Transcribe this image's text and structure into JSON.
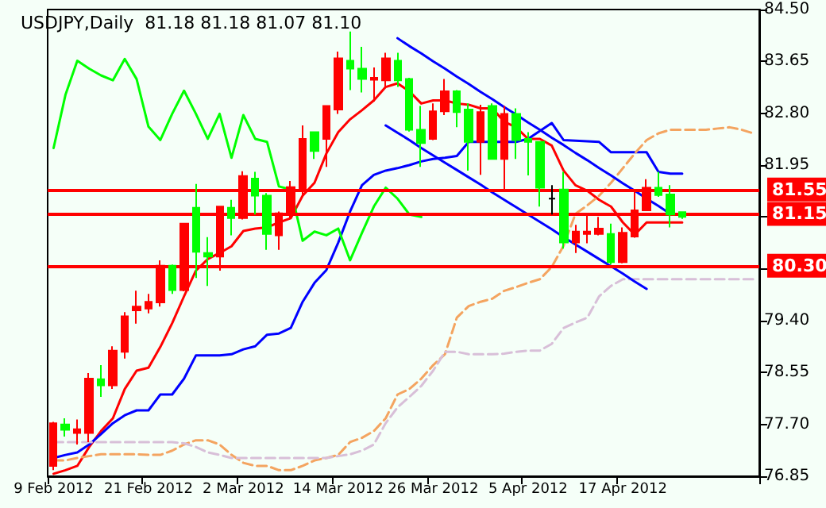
{
  "chart_data": {
    "type": "candlestick",
    "title": "USDJPY,Daily  81.18 81.18 81.07 81.10",
    "categories": [
      "9 Feb 2012",
      null,
      null,
      null,
      null,
      null,
      null,
      null,
      "21 Feb 2012",
      null,
      null,
      null,
      null,
      null,
      null,
      null,
      "2 Mar 2012",
      null,
      null,
      null,
      null,
      null,
      null,
      null,
      "14 Mar 2012",
      null,
      null,
      null,
      null,
      null,
      null,
      null,
      "26 Mar 2012",
      null,
      null,
      null,
      null,
      null,
      null,
      null,
      "5 Apr 2012",
      null,
      null,
      null,
      null,
      null,
      null,
      null,
      "17 Apr 2012",
      null,
      null,
      null,
      null,
      null,
      null,
      null,
      null,
      null,
      null,
      null
    ],
    "ylim": [
      76.85,
      84.5
    ],
    "yticks": [
      {
        "value": 76.85,
        "label": "76.85"
      },
      {
        "value": 77.7,
        "label": "77.70"
      },
      {
        "value": 78.55,
        "label": "78.55"
      },
      {
        "value": 79.4,
        "label": "79.40"
      },
      {
        "value": 80.25,
        "label": null
      },
      {
        "value": 81.1,
        "label": null
      },
      {
        "value": 81.95,
        "label": "81.95"
      },
      {
        "value": 82.8,
        "label": "82.80"
      },
      {
        "value": 83.65,
        "label": "83.65"
      },
      {
        "value": 84.5,
        "label": "84.50"
      }
    ],
    "grid": false,
    "marker": "none",
    "ref_lines": [
      {
        "axis": "y",
        "value": 81.55,
        "label": "81.55",
        "color": "#ff0000"
      },
      {
        "axis": "y",
        "value": 81.15,
        "label": "81.15",
        "color": "#ff0000"
      },
      {
        "axis": "y",
        "value": 80.3,
        "label": "80.30",
        "color": "#ff0000"
      }
    ],
    "series": [
      {
        "type": "candlestick",
        "ohlc": [
          [
            77.02,
            77.74,
            76.95,
            77.72
          ],
          [
            77.7,
            77.8,
            77.5,
            77.61
          ],
          [
            77.56,
            77.78,
            77.37,
            77.62
          ],
          [
            77.56,
            78.54,
            77.41,
            78.45
          ],
          [
            78.44,
            78.67,
            78.15,
            78.34
          ],
          [
            78.34,
            78.98,
            78.28,
            78.91
          ],
          [
            78.89,
            79.54,
            78.78,
            79.47
          ],
          [
            79.57,
            79.89,
            79.35,
            79.63
          ],
          [
            79.6,
            79.84,
            79.52,
            79.71
          ],
          [
            79.7,
            80.39,
            79.63,
            80.3
          ],
          [
            80.3,
            80.32,
            79.84,
            79.9
          ],
          [
            79.9,
            80.99,
            79.88,
            80.99
          ],
          [
            81.25,
            81.64,
            80.1,
            80.53
          ],
          [
            80.51,
            80.77,
            79.97,
            80.45
          ],
          [
            80.45,
            81.27,
            80.22,
            81.27
          ],
          [
            81.25,
            81.38,
            80.8,
            81.08
          ],
          [
            81.08,
            81.85,
            81.06,
            81.77
          ],
          [
            81.73,
            81.84,
            81.14,
            81.45
          ],
          [
            81.45,
            81.49,
            80.56,
            80.82
          ],
          [
            80.8,
            81.19,
            80.56,
            81.16
          ],
          [
            81.16,
            81.69,
            81.08,
            81.59
          ],
          [
            81.55,
            82.6,
            81.46,
            82.38
          ],
          [
            82.49,
            82.49,
            82.05,
            82.18
          ],
          [
            82.38,
            82.92,
            81.92,
            82.92
          ],
          [
            82.86,
            83.81,
            82.79,
            83.7
          ],
          [
            83.66,
            84.14,
            83.18,
            83.53
          ],
          [
            83.53,
            83.89,
            83.14,
            83.36
          ],
          [
            83.35,
            83.55,
            82.99,
            83.38
          ],
          [
            83.34,
            83.79,
            83.23,
            83.7
          ],
          [
            83.66,
            83.79,
            83.23,
            83.34
          ],
          [
            83.36,
            83.38,
            82.5,
            82.53
          ],
          [
            82.53,
            82.92,
            81.92,
            82.31
          ],
          [
            82.38,
            82.96,
            82.36,
            82.83
          ],
          [
            82.83,
            83.36,
            82.77,
            83.16
          ],
          [
            83.16,
            83.18,
            82.57,
            82.82
          ],
          [
            82.86,
            82.96,
            81.86,
            82.33
          ],
          [
            82.33,
            82.94,
            81.79,
            82.82
          ],
          [
            82.92,
            82.96,
            82.05,
            82.05
          ],
          [
            82.05,
            82.92,
            81.55,
            82.79
          ],
          [
            82.79,
            82.88,
            82.05,
            82.36
          ],
          [
            82.38,
            82.49,
            81.78,
            82.33
          ],
          [
            82.33,
            82.33,
            81.27,
            81.58
          ],
          [
            81.4,
            81.62,
            81.14,
            81.4
          ],
          [
            81.55,
            81.84,
            80.58,
            80.68
          ],
          [
            80.68,
            80.97,
            80.51,
            80.86
          ],
          [
            80.82,
            81.14,
            80.67,
            80.86
          ],
          [
            80.82,
            81.1,
            80.8,
            80.91
          ],
          [
            80.82,
            80.99,
            80.32,
            80.36
          ],
          [
            80.36,
            80.93,
            80.34,
            80.84
          ],
          [
            80.78,
            81.55,
            80.76,
            81.21
          ],
          [
            81.21,
            81.72,
            81.2,
            81.58
          ],
          [
            81.58,
            81.84,
            81.43,
            81.46
          ],
          [
            81.47,
            81.62,
            80.93,
            81.14
          ],
          [
            81.18,
            81.18,
            81.07,
            81.1
          ],
          null,
          null,
          null,
          null,
          null,
          null
        ],
        "colors": [
          "#ff0000",
          "#00ff00",
          "#ff0000",
          "#ff0000",
          "#00ff00",
          "#ff0000",
          "#ff0000",
          "#ff0000",
          "#ff0000",
          "#ff0000",
          "#00ff00",
          "#ff0000",
          "#00ff00",
          "#00ff00",
          "#ff0000",
          "#00ff00",
          "#ff0000",
          "#00ff00",
          "#00ff00",
          "#ff0000",
          "#ff0000",
          "#ff0000",
          "#00ff00",
          "#ff0000",
          "#ff0000",
          "#00ff00",
          "#00ff00",
          "#ff0000",
          "#ff0000",
          "#00ff00",
          "#00ff00",
          "#00ff00",
          "#ff0000",
          "#ff0000",
          "#00ff00",
          "#00ff00",
          "#ff0000",
          "#00ff00",
          "#ff0000",
          "#00ff00",
          "#00ff00",
          "#00ff00",
          "#000000",
          "#00ff00",
          "#ff0000",
          "#ff0000",
          "#ff0000",
          "#00ff00",
          "#ff0000",
          "#ff0000",
          "#ff0000",
          "#00ff00",
          "#00ff00",
          "#00ff00",
          null,
          null,
          null,
          null,
          null,
          null
        ]
      },
      {
        "type": "line",
        "color": "#ff0000",
        "line_style": "solid",
        "values": [
          76.89,
          76.95,
          77.02,
          77.33,
          77.59,
          77.8,
          78.28,
          78.58,
          78.63,
          78.97,
          79.36,
          79.8,
          80.22,
          80.41,
          80.51,
          80.62,
          80.87,
          80.91,
          80.93,
          81.01,
          81.08,
          81.45,
          81.66,
          82.14,
          82.49,
          82.7,
          82.85,
          83.01,
          83.23,
          83.29,
          83.16,
          82.96,
          83.01,
          83.01,
          82.96,
          82.94,
          82.88,
          82.88,
          82.66,
          82.57,
          82.38,
          82.38,
          82.27,
          81.86,
          81.62,
          81.53,
          81.38,
          81.27,
          81.01,
          80.81,
          81.01,
          81.01,
          81.01,
          81.01,
          null,
          null,
          null,
          null,
          null,
          null
        ]
      },
      {
        "type": "line",
        "color": "#0000ff",
        "line_style": "solid",
        "values": [
          77.15,
          77.2,
          77.24,
          77.37,
          77.54,
          77.72,
          77.85,
          77.93,
          77.93,
          78.19,
          78.19,
          78.45,
          78.83,
          78.83,
          78.83,
          78.85,
          78.93,
          78.98,
          79.17,
          79.19,
          79.28,
          79.71,
          80.02,
          80.23,
          80.68,
          81.19,
          81.62,
          81.79,
          81.86,
          81.9,
          81.95,
          82.01,
          82.05,
          82.07,
          82.1,
          82.33,
          82.33,
          82.33,
          82.33,
          82.33,
          82.38,
          82.51,
          82.64,
          82.36,
          82.35,
          82.34,
          82.33,
          82.16,
          82.16,
          82.16,
          82.16,
          81.84,
          81.81,
          81.81,
          null,
          null,
          null,
          null,
          null,
          null
        ]
      },
      {
        "type": "line",
        "color": "#00ff00",
        "line_style": "solid",
        "values": [
          82.23,
          83.1,
          83.66,
          83.53,
          83.42,
          83.34,
          83.69,
          83.36,
          82.58,
          82.36,
          82.79,
          83.17,
          82.79,
          82.38,
          82.79,
          82.07,
          82.77,
          82.38,
          82.33,
          81.6,
          81.55,
          80.71,
          80.86,
          80.8,
          80.91,
          80.39,
          80.84,
          81.27,
          81.58,
          81.4,
          81.14,
          81.1,
          null,
          null,
          null,
          null,
          null,
          null,
          null,
          null,
          null,
          null,
          null,
          null,
          null,
          null,
          null,
          null,
          null,
          null,
          null,
          null,
          null,
          null,
          null,
          null,
          null,
          null,
          null,
          null
        ]
      },
      {
        "type": "line",
        "color": "#f4a460",
        "line_style": "dashed",
        "values": [
          77.11,
          77.11,
          77.15,
          77.18,
          77.21,
          77.21,
          77.21,
          77.21,
          77.2,
          77.2,
          77.27,
          77.37,
          77.44,
          77.44,
          77.37,
          77.2,
          77.07,
          77.02,
          77.02,
          76.95,
          76.95,
          77.02,
          77.11,
          77.15,
          77.2,
          77.41,
          77.48,
          77.59,
          77.8,
          78.19,
          78.28,
          78.45,
          78.67,
          78.85,
          79.45,
          79.64,
          79.71,
          79.76,
          79.89,
          79.95,
          80.02,
          80.08,
          80.28,
          80.63,
          81.15,
          81.29,
          81.45,
          81.66,
          81.9,
          82.14,
          82.36,
          82.47,
          82.53,
          82.53,
          82.53,
          82.53,
          82.55,
          82.57,
          82.53,
          82.47
        ]
      },
      {
        "type": "line",
        "color": "#d8bfd8",
        "line_style": "dashed",
        "values": [
          77.41,
          77.41,
          77.41,
          77.41,
          77.41,
          77.41,
          77.41,
          77.41,
          77.41,
          77.41,
          77.41,
          77.39,
          77.33,
          77.24,
          77.2,
          77.15,
          77.15,
          77.15,
          77.15,
          77.15,
          77.15,
          77.15,
          77.15,
          77.15,
          77.18,
          77.21,
          77.27,
          77.37,
          77.72,
          77.98,
          78.15,
          78.33,
          78.58,
          78.89,
          78.89,
          78.85,
          78.85,
          78.85,
          78.86,
          78.89,
          78.91,
          78.91,
          79.02,
          79.28,
          79.37,
          79.45,
          79.8,
          79.97,
          80.08,
          80.08,
          80.08,
          80.08,
          80.08,
          80.08,
          80.08,
          80.08,
          80.08,
          80.08,
          80.08,
          80.08
        ]
      },
      {
        "type": "line",
        "color": "#0000ff",
        "line_style": "solid",
        "values": [
          null,
          null,
          null,
          null,
          null,
          null,
          null,
          null,
          null,
          null,
          null,
          null,
          null,
          null,
          null,
          null,
          null,
          null,
          null,
          null,
          null,
          null,
          null,
          null,
          null,
          null,
          null,
          null,
          null,
          84.03,
          83.9,
          83.78,
          83.65,
          83.53,
          83.4,
          83.28,
          83.15,
          83.03,
          82.9,
          82.78,
          82.65,
          82.53,
          82.4,
          82.28,
          82.15,
          82.03,
          81.9,
          81.78,
          81.65,
          81.53,
          81.4,
          81.28,
          81.15,
          null,
          null,
          null,
          null,
          null,
          null,
          null
        ]
      },
      {
        "type": "line",
        "color": "#0000ff",
        "line_style": "solid",
        "values": [
          null,
          null,
          null,
          null,
          null,
          null,
          null,
          null,
          null,
          null,
          null,
          null,
          null,
          null,
          null,
          null,
          null,
          null,
          null,
          null,
          null,
          null,
          null,
          null,
          null,
          null,
          null,
          null,
          82.6,
          82.48,
          82.36,
          82.23,
          82.11,
          81.99,
          81.87,
          81.75,
          81.63,
          81.5,
          81.38,
          81.26,
          81.14,
          81.02,
          80.9,
          80.77,
          80.65,
          80.53,
          80.41,
          80.29,
          80.17,
          80.04,
          79.92,
          null,
          null,
          null,
          null,
          null,
          null,
          null,
          null,
          null
        ]
      }
    ]
  }
}
